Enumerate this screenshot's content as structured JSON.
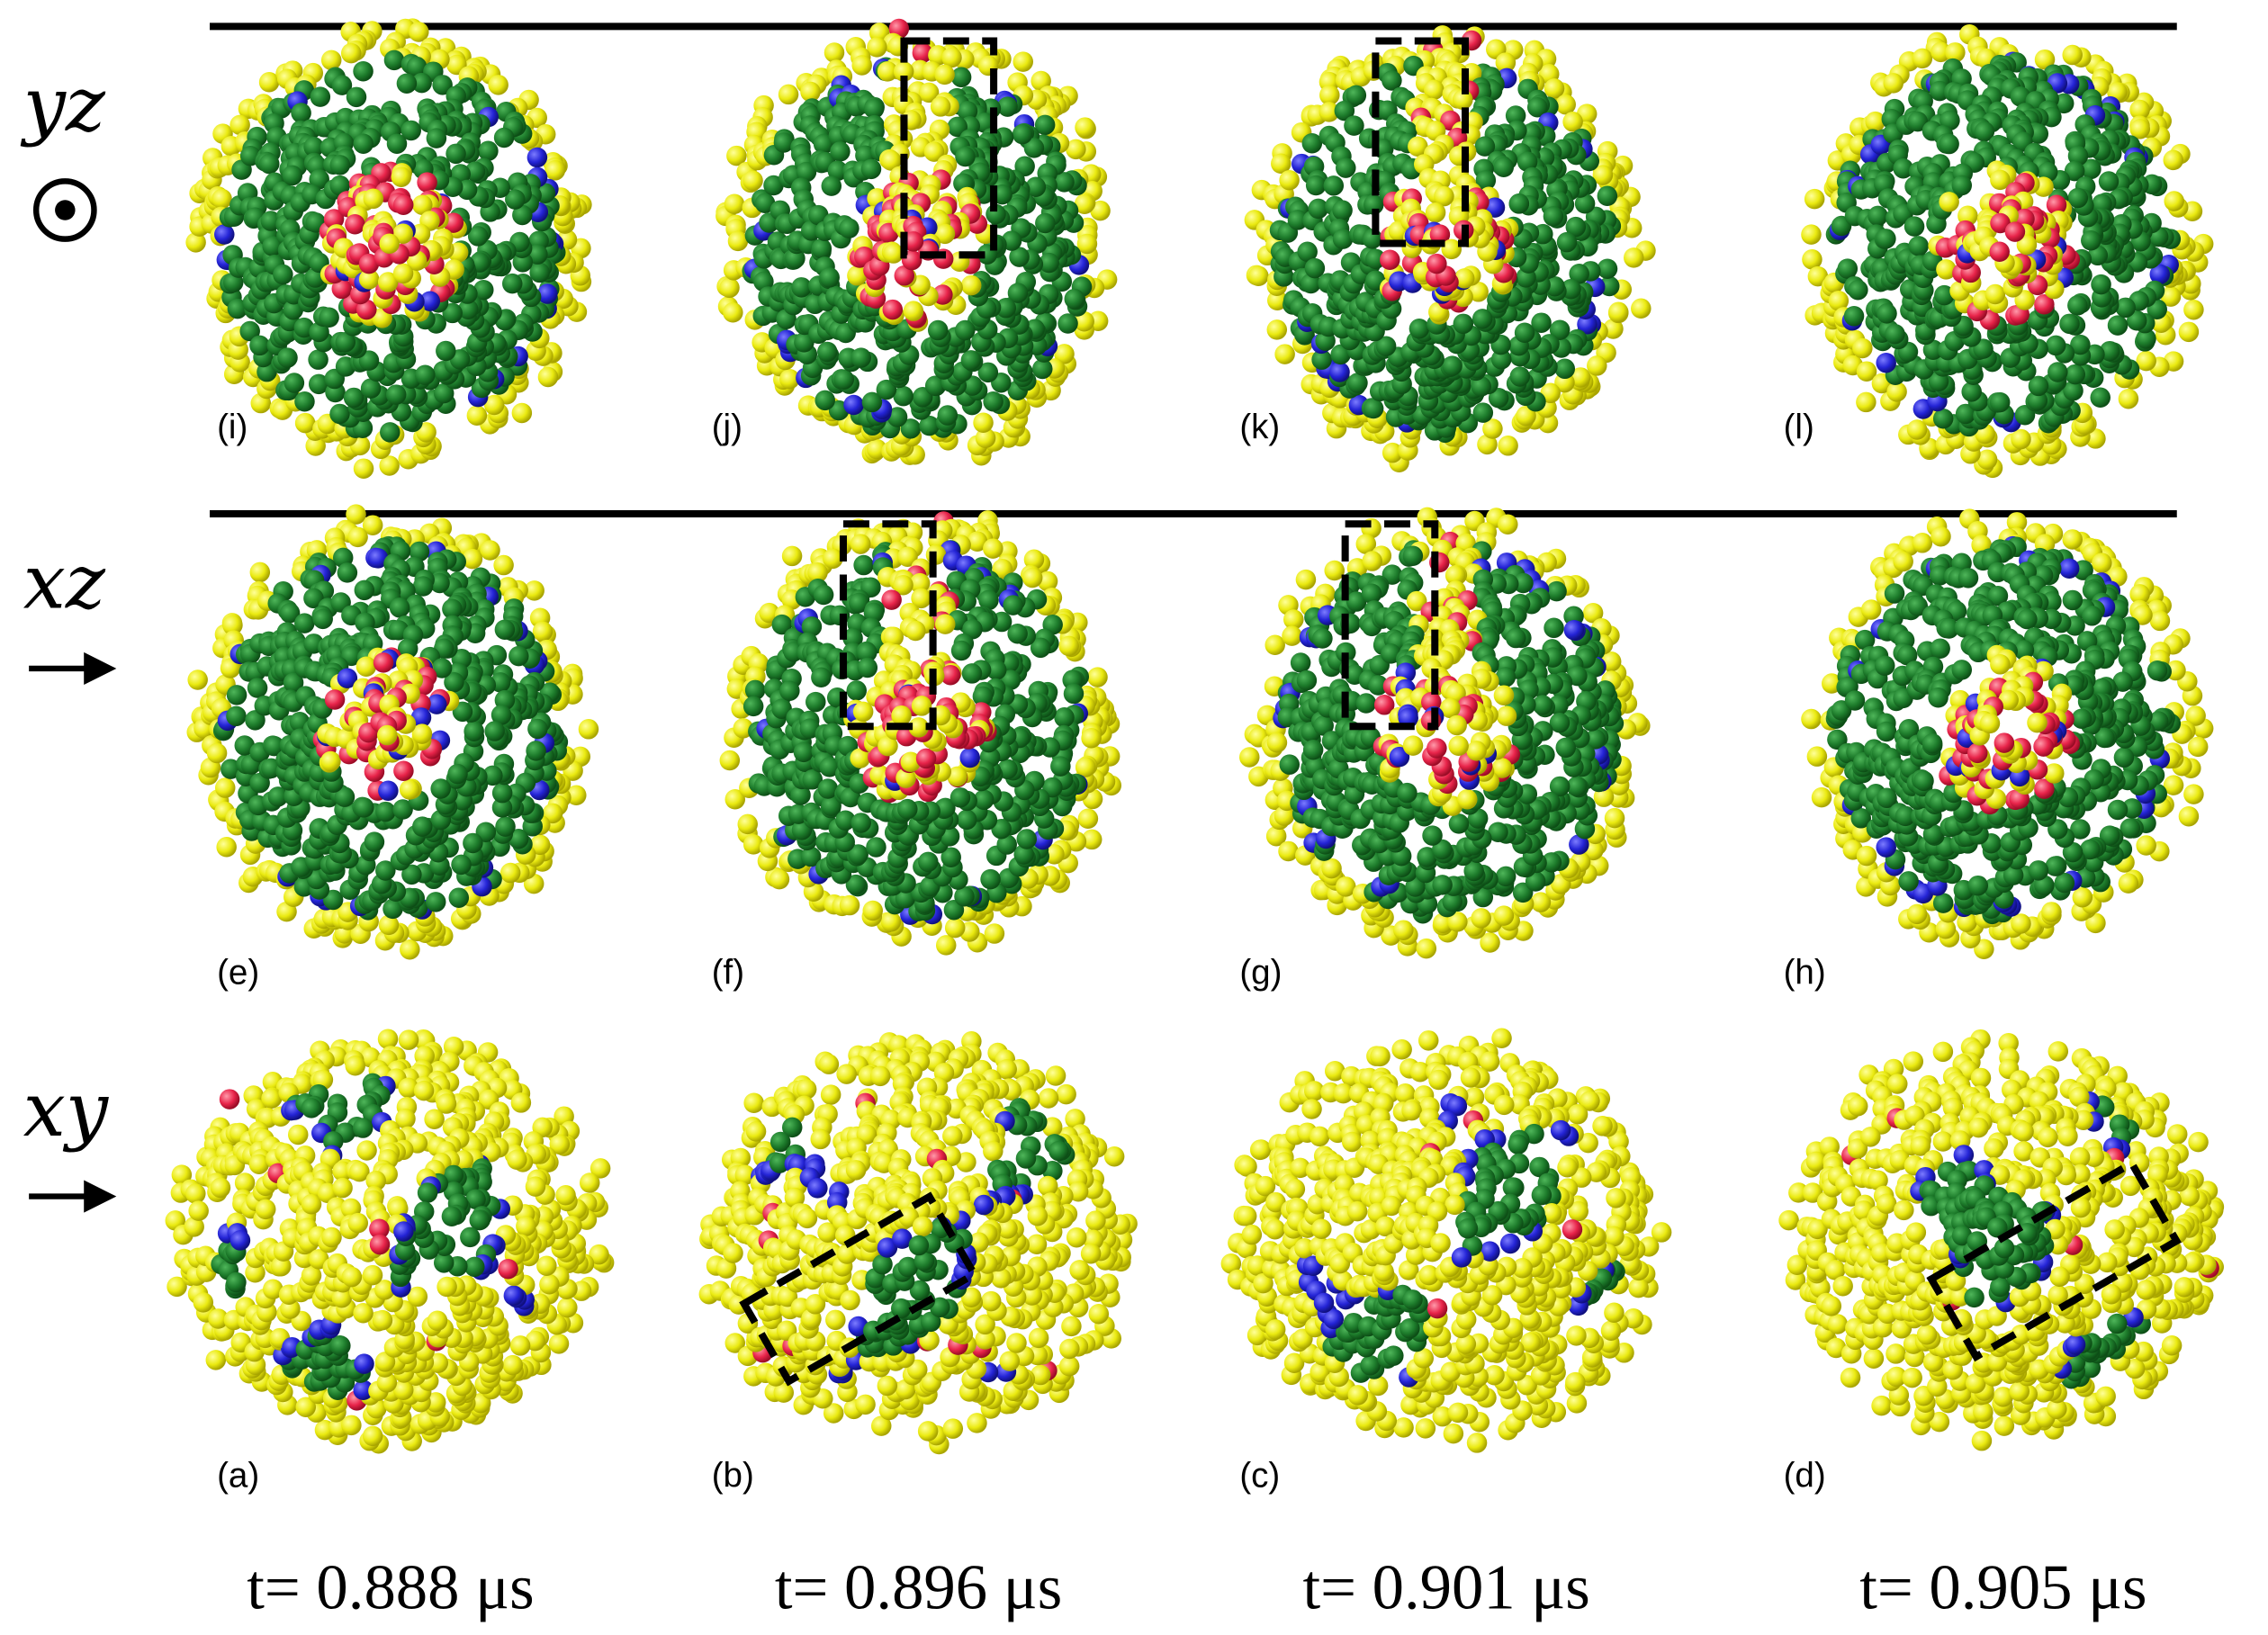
{
  "rows": [
    {
      "axis_label": "yz",
      "panels": [
        "(i)",
        "(j)",
        "(k)",
        "(l)"
      ]
    },
    {
      "axis_label": "xz",
      "panels": [
        "(e)",
        "(f)",
        "(g)",
        "(h)"
      ]
    },
    {
      "axis_label": "xy",
      "panels": [
        "(a)",
        "(b)",
        "(c)",
        "(d)"
      ]
    }
  ],
  "time_labels": [
    "t= 0.888 μs",
    "t= 0.896 μs",
    "t= 0.901 μs",
    "t= 0.905 μs"
  ]
}
